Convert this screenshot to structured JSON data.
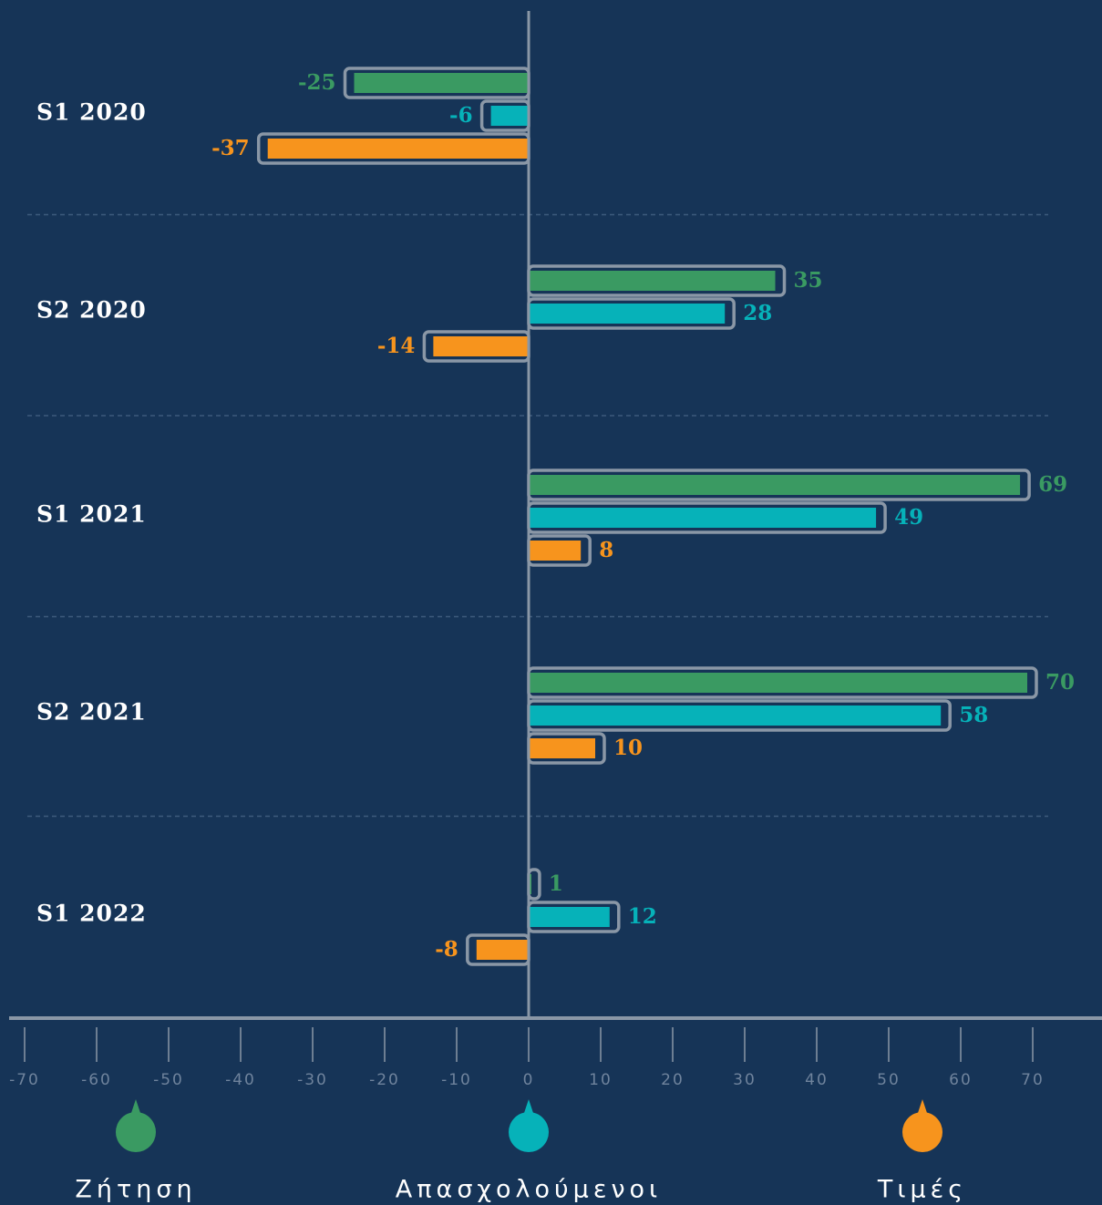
{
  "chart_data": {
    "type": "bar",
    "orientation": "horizontal",
    "categories": [
      "S1 2020",
      "S2 2020",
      "S1 2021",
      "S2 2021",
      "S1 2022"
    ],
    "series": [
      {
        "name": "Ζήτηση",
        "color": "#3a9a62",
        "values": [
          -25,
          35,
          69,
          70,
          1
        ]
      },
      {
        "name": "Απασχολούμενοι",
        "color": "#06b2b9",
        "values": [
          -6,
          28,
          49,
          58,
          12
        ]
      },
      {
        "name": "Τιμές",
        "color": "#f7941d",
        "values": [
          -37,
          -14,
          8,
          10,
          -8
        ]
      }
    ],
    "xlim": [
      -70,
      70
    ],
    "xticks": [
      -70,
      -60,
      -50,
      -40,
      -30,
      -20,
      -10,
      0,
      10,
      20,
      30,
      40,
      50,
      60,
      70
    ],
    "legend": "bottom"
  }
}
